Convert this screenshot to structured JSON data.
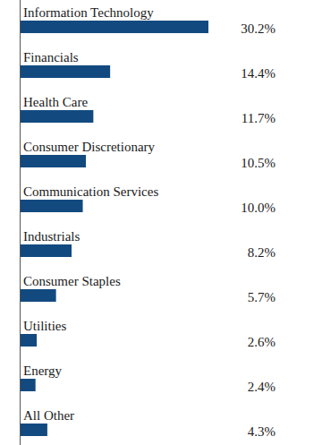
{
  "chart_data": {
    "type": "bar",
    "orientation": "horizontal",
    "categories": [
      "Information Technology",
      "Financials",
      "Health Care",
      "Consumer Discretionary",
      "Communication Services",
      "Industrials",
      "Consumer Staples",
      "Utilities",
      "Energy",
      "All Other"
    ],
    "values": [
      30.2,
      14.4,
      11.7,
      10.5,
      10.0,
      8.2,
      5.7,
      2.6,
      2.4,
      4.3
    ],
    "value_labels": [
      "30.2%",
      "14.4%",
      "11.7%",
      "10.5%",
      "10.0%",
      "8.2%",
      "5.7%",
      "2.6%",
      "2.4%",
      "4.3%"
    ],
    "color": "#124a80",
    "data_labels": true,
    "tick_labels": false
  }
}
